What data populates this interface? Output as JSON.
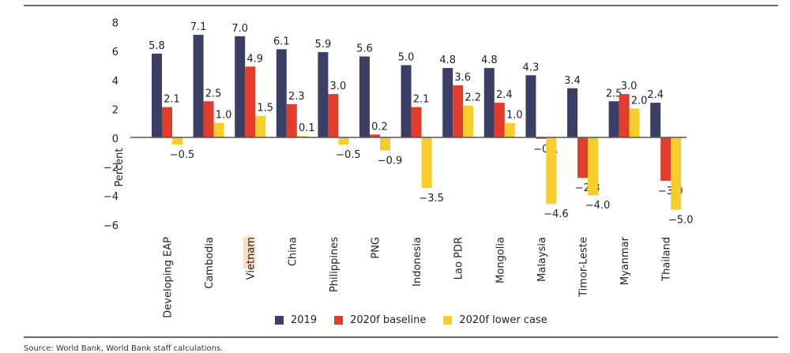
{
  "chart_data": {
    "type": "bar",
    "title": "",
    "xlabel": "",
    "ylabel": "Percent",
    "ylim": [
      -6,
      8
    ],
    "yticks": [
      8,
      6,
      4,
      2,
      0,
      -2,
      -4,
      -6
    ],
    "ytick_labels": [
      "8",
      "6",
      "4",
      "2",
      "0",
      "−2",
      "−4",
      "−6"
    ],
    "grid": false,
    "legend_position": "bottom",
    "categories": [
      "Developing EAP",
      "Cambodia",
      "Vietnam",
      "China",
      "Philippines",
      "PNG",
      "Indonesia",
      "Lao PDR",
      "Mongolia",
      "Malaysia",
      "Timor-Leste",
      "Myanmar",
      "Thailand"
    ],
    "highlighted_category": "Vietnam",
    "series": [
      {
        "name": "2019",
        "color": "#3b3f66",
        "values": [
          5.8,
          7.1,
          7.0,
          6.1,
          5.9,
          5.6,
          5.0,
          4.8,
          4.8,
          4.3,
          3.4,
          2.5,
          2.4
        ]
      },
      {
        "name": "2020f baseline",
        "color": "#e23d2a",
        "values": [
          2.1,
          2.5,
          4.9,
          2.3,
          3.0,
          0.2,
          2.1,
          3.6,
          2.4,
          -0.1,
          -2.8,
          3.0,
          -3.0
        ]
      },
      {
        "name": "2020f lower case",
        "color": "#f7cd2a",
        "values": [
          -0.5,
          1.0,
          1.5,
          0.1,
          -0.5,
          -0.9,
          -3.5,
          2.2,
          1.0,
          -4.6,
          -4.0,
          2.0,
          -5.0
        ]
      }
    ],
    "data_labels": [
      [
        "5.8",
        "7.1",
        "7.0",
        "6.1",
        "5.9",
        "5.6",
        "5.0",
        "4.8",
        "4.8",
        "4.3",
        "3.4",
        "2.5",
        "2.4"
      ],
      [
        "2.1",
        "2.5",
        "4.9",
        "2.3",
        "3.0",
        "0.2",
        "2.1",
        "3.6",
        "2.4",
        "−0.1",
        "−2.8",
        "3.0",
        "−3.0"
      ],
      [
        "−0.5",
        "1.0",
        "1.5",
        "0.1",
        "−0.5",
        "−0.9",
        "−3.5",
        "2.2",
        "1.0",
        "−4.6",
        "−4.0",
        "2.0",
        "−5.0"
      ]
    ]
  },
  "colors": {
    "axis": "#555555",
    "text": "#222222",
    "highlight": "#fadfc2"
  },
  "source": "Source: World Bank, World Bank staff calculations."
}
